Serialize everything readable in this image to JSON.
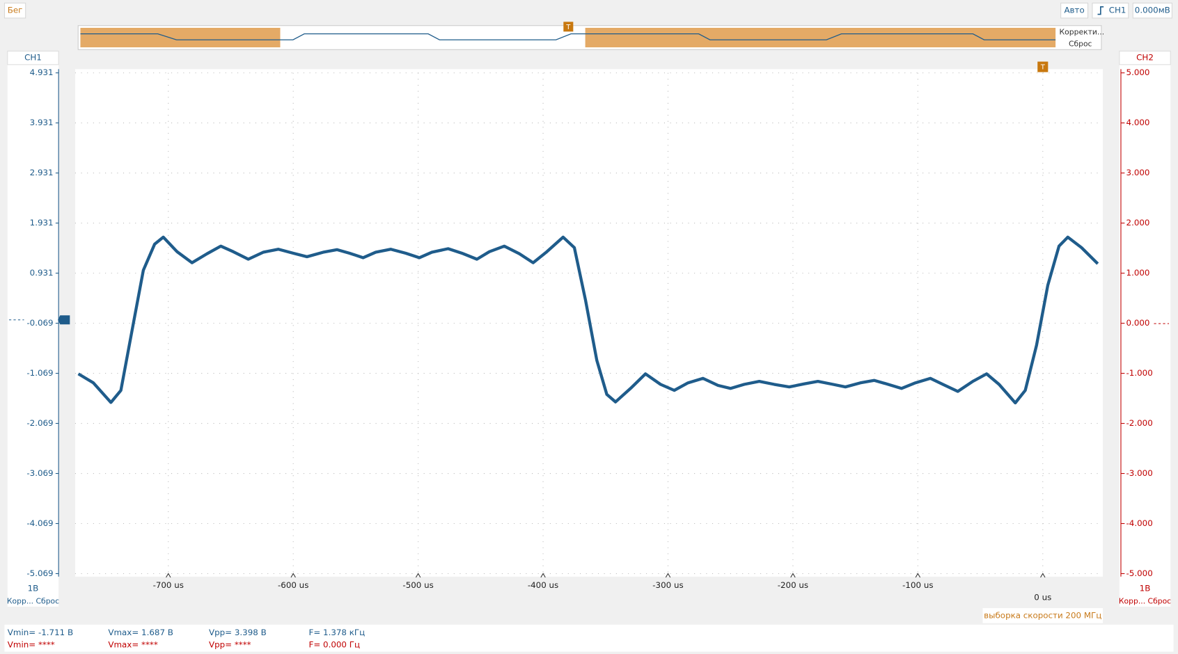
{
  "toolbar": {
    "run": "Бег",
    "mode": "Авто",
    "trigger_source": "CH1",
    "trigger_level": "0.000мВ"
  },
  "overview": {
    "marker": "T",
    "correct": "Корректи...",
    "reset": "Сброс"
  },
  "chart_data": {
    "type": "line",
    "x": [
      -772,
      -760,
      -746,
      -738,
      -729,
      -720,
      -711,
      -704,
      -693,
      -681,
      -669,
      -658,
      -648,
      -636,
      -624,
      -612,
      -600,
      -589,
      -576,
      -565,
      -555,
      -544,
      -534,
      -522,
      -510,
      -499,
      -489,
      -476,
      -465,
      -453,
      -443,
      -431,
      -419,
      -408,
      -397,
      -384,
      -375,
      -366,
      -357,
      -349,
      -342,
      -330,
      -318,
      -306,
      -295,
      -284,
      -272,
      -260,
      -250,
      -239,
      -227,
      -215,
      -203,
      -191,
      -180,
      -168,
      -158,
      -146,
      -135,
      -125,
      -113,
      -102,
      -90,
      -80,
      -68,
      -56,
      -45,
      -35,
      -22,
      -14,
      -5,
      4,
      13,
      20,
      31,
      44
    ],
    "series": [
      {
        "name": "CH1",
        "color": "#1f5c8b",
        "values": [
          -1.08,
          -1.26,
          -1.65,
          -1.41,
          -0.21,
          0.99,
          1.51,
          1.65,
          1.36,
          1.14,
          1.32,
          1.47,
          1.36,
          1.21,
          1.35,
          1.41,
          1.33,
          1.26,
          1.35,
          1.4,
          1.33,
          1.24,
          1.35,
          1.41,
          1.33,
          1.24,
          1.35,
          1.42,
          1.33,
          1.21,
          1.36,
          1.47,
          1.32,
          1.14,
          1.36,
          1.65,
          1.44,
          0.39,
          -0.81,
          -1.49,
          -1.64,
          -1.37,
          -1.08,
          -1.29,
          -1.41,
          -1.26,
          -1.17,
          -1.31,
          -1.37,
          -1.29,
          -1.23,
          -1.29,
          -1.34,
          -1.28,
          -1.23,
          -1.29,
          -1.34,
          -1.26,
          -1.21,
          -1.28,
          -1.37,
          -1.26,
          -1.17,
          -1.29,
          -1.43,
          -1.23,
          -1.08,
          -1.29,
          -1.66,
          -1.41,
          -0.51,
          0.69,
          1.47,
          1.65,
          1.44,
          1.12
        ]
      }
    ],
    "xlim": [
      -774.6,
      48.1
    ],
    "xticks": [
      {
        "value": -700,
        "label": "-700 us"
      },
      {
        "value": -600,
        "label": "-600 us"
      },
      {
        "value": -500,
        "label": "-500 us"
      },
      {
        "value": -400,
        "label": "-400 us"
      },
      {
        "value": -300,
        "label": "-300 us"
      },
      {
        "value": -200,
        "label": "-200 us"
      },
      {
        "value": -100,
        "label": "-100 us"
      },
      {
        "value": 0,
        "label": "0 us"
      }
    ],
    "ylim": [
      -5.069,
      4.931
    ],
    "yticks": [
      4.931,
      3.931,
      2.931,
      1.931,
      0.931,
      -0.069,
      -1.069,
      -2.069,
      -3.069,
      -4.069,
      -5.069
    ],
    "y2lim": [
      -5,
      5
    ],
    "y2ticks": [
      {
        "value": 5,
        "label": "5.000"
      },
      {
        "value": 4,
        "label": "4.000"
      },
      {
        "value": 3,
        "label": "3.000"
      },
      {
        "value": 2,
        "label": "2.000"
      },
      {
        "value": 1,
        "label": "1.000"
      },
      {
        "value": 0,
        "label": "0.000"
      },
      {
        "value": -1,
        "label": "-1.000"
      },
      {
        "value": -2,
        "label": "-2.000"
      },
      {
        "value": -3,
        "label": "-3.000"
      },
      {
        "value": -4,
        "label": "-4.000"
      },
      {
        "value": -5,
        "label": "-5.000"
      }
    ],
    "y2_label": "CH2",
    "y2_color": "#c00000",
    "grid": true,
    "trigger_marker": "T",
    "annotation": "выборка скорости 200 МГц"
  },
  "left_panel": {
    "scale": "1В",
    "buttons": "Корр... Сброс"
  },
  "right_panel": {
    "scale": "1В",
    "buttons": "Корр... Сброс"
  },
  "measurements": {
    "ch1": [
      "Vmin= -1.711 В",
      "Vmax= 1.687 В",
      "Vpp= 3.398 В",
      "F= 1.378 кГц"
    ],
    "ch2": [
      "Vmin= ****",
      "Vmax= ****",
      "Vpp= ****",
      "F= 0.000 Гц"
    ]
  }
}
